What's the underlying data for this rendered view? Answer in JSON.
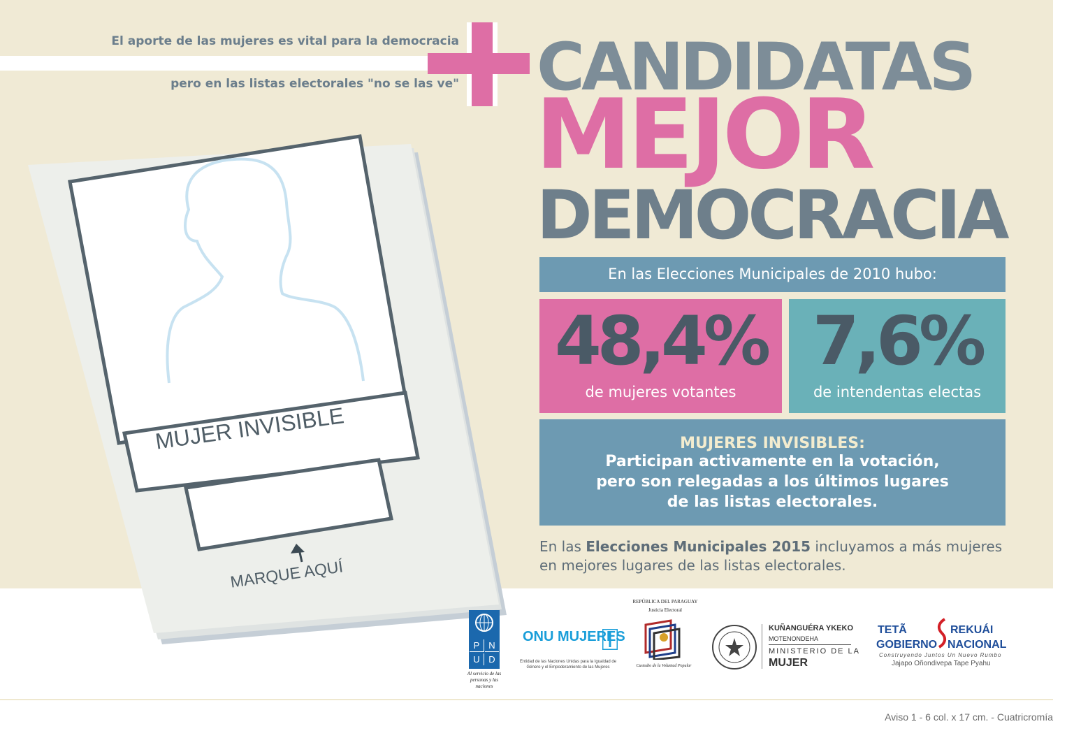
{
  "intro": {
    "line1": "El aporte de las mujeres es vital para la democracia",
    "line2": "pero en las listas electorales \"no se las ve\""
  },
  "headline": {
    "line1": "CANDIDATAS",
    "line2": "MEJOR",
    "line3": "DEMOCRACIA"
  },
  "ballot": {
    "label": "MUJER INVISIBLE",
    "mark_here": "MARQUE AQUÍ"
  },
  "stats": {
    "heading": "En las Elecciones Municipales de 2010 hubo:",
    "stat1": {
      "value": "48,4%",
      "caption": "de mujeres votantes"
    },
    "stat2": {
      "value": "7,6%",
      "caption": "de intendentas electas"
    }
  },
  "invisibles": {
    "heading": "MUJERES INVISIBLES:",
    "line1": "Participan activamente en la votación,",
    "line2": "pero son relegadas a los últimos lugares",
    "line3": "de las listas electorales."
  },
  "call": {
    "pre": "En las ",
    "bold": "Elecciones Municipales 2015",
    "post": " incluyamos a más mujeres",
    "line2": "en mejores lugares de las listas electorales."
  },
  "logos": {
    "pnud": {
      "letters": [
        "P",
        "N",
        "U",
        "D"
      ],
      "tagline": "Al servicio de las personas y las naciones"
    },
    "onu_mujeres": {
      "title": "ONU MUJERES",
      "subtitle": "Entidad de las Naciones Unidas para la Igualdad de Género y el Empoderamiento de las Mujeres"
    },
    "justicia_electoral": {
      "top1": "REPÚBLICA DEL PARAGUAY",
      "top2": "Justicia Electoral",
      "bottom": "Custodio de la Voluntad Popular"
    },
    "ministerio": {
      "l1": "KUÑANGUÉRA YKEKO",
      "l2": "MOTENONDEHA",
      "l3": "MINISTERIO DE LA",
      "l4": "MUJER"
    },
    "gobierno": {
      "w1": "TETÃ",
      "w2": "REKUÁI",
      "w3": "GOBIERNO",
      "w4": "NACIONAL",
      "slogan": "Construyendo Juntos Un Nuevo Rumbo",
      "slogan2": "Jajapo Oñondivepa Tape Pyahu"
    }
  },
  "footer_note": "Aviso 1 - 6 col. x 17 cm. - Cuatricromía",
  "colors": {
    "background": "#f0ead5",
    "pink": "#de6ea5",
    "slate": "#7d8d98",
    "blue": "#6d9ab2",
    "teal": "#6ab1b8",
    "dark": "#4a5a66"
  }
}
